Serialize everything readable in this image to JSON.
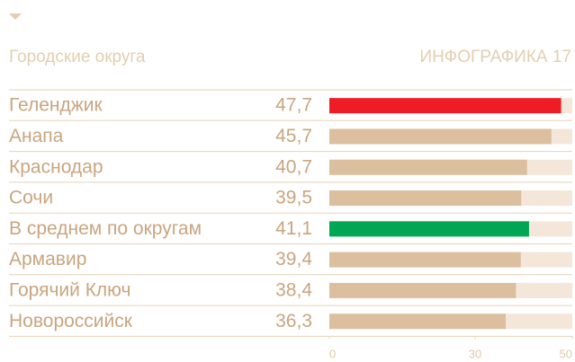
{
  "chart_data": {
    "type": "bar",
    "orientation": "horizontal",
    "title": "Городские округа",
    "subtitle": "ИНФОГРАФИКА 17",
    "categories": [
      "Геленджик",
      "Анапа",
      "Краснодар",
      "Сочи",
      "В среднем по округам",
      "Армавир",
      "Горячий Ключ",
      "Новороссийск"
    ],
    "values": [
      47.7,
      45.7,
      40.7,
      39.5,
      41.1,
      39.4,
      38.4,
      36.3
    ],
    "value_labels": [
      "47,7",
      "45,7",
      "40,7",
      "39,5",
      "41,1",
      "39,4",
      "38,4",
      "36,3"
    ],
    "colors": [
      "#ee1d25",
      "#dbbf9e",
      "#dbbf9e",
      "#dbbf9e",
      "#00a651",
      "#dbbf9e",
      "#dbbf9e",
      "#dbbf9e"
    ],
    "track_color": "#f4e7da",
    "xlim": [
      0,
      50
    ],
    "xticks": [
      0,
      30,
      50
    ]
  }
}
